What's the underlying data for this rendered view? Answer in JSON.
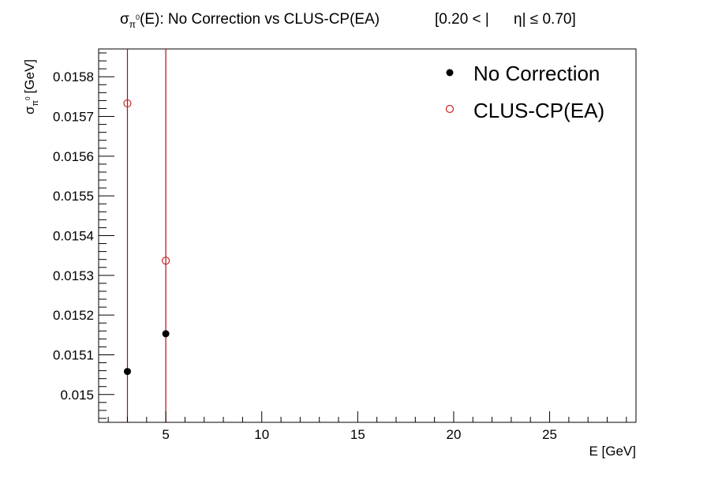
{
  "chart_data": {
    "type": "scatter",
    "title": {
      "prefix": "σ",
      "sub1": "π",
      "sup1": "0",
      "main": "(E): No Correction vs CLUS-CP(EA)",
      "range_a": "[0.20 < |",
      "range_b": "η| ≤ 0.70]"
    },
    "xlabel": "E [GeV]",
    "ylabel": {
      "base": "σ",
      "sub": "π",
      "sup": "0",
      "unit": "[GeV]"
    },
    "xlim": [
      1.5,
      29.5
    ],
    "ylim": [
      0.01493,
      0.01587
    ],
    "x_ticks": [
      5,
      10,
      15,
      20,
      25
    ],
    "x_tick_labels": [
      "5",
      "10",
      "15",
      "20",
      "25"
    ],
    "y_ticks": [
      0.015,
      0.0151,
      0.0152,
      0.0153,
      0.0154,
      0.0155,
      0.0156,
      0.0157,
      0.0158
    ],
    "y_tick_labels": [
      "0.015",
      "0.0151",
      "0.0152",
      "0.0153",
      "0.0154",
      "0.0155",
      "0.0156",
      "0.0157",
      "0.0158"
    ],
    "grid": false,
    "legend_position": "top-right",
    "series": [
      {
        "name": "No Correction",
        "marker": "filled-circle",
        "color": "#000000",
        "points": [
          {
            "x": 3,
            "y": 0.015058
          },
          {
            "x": 5,
            "y": 0.015153
          }
        ]
      },
      {
        "name": "CLUS-CP(EA)",
        "marker": "open-circle",
        "color": "#cc2222",
        "points": [
          {
            "x": 3,
            "y": 0.015733
          },
          {
            "x": 5,
            "y": 0.015337
          }
        ]
      }
    ],
    "vertical_lines": [
      {
        "x": 3,
        "color": "#aa1111"
      },
      {
        "x": 5,
        "color": "#aa1111"
      }
    ]
  }
}
